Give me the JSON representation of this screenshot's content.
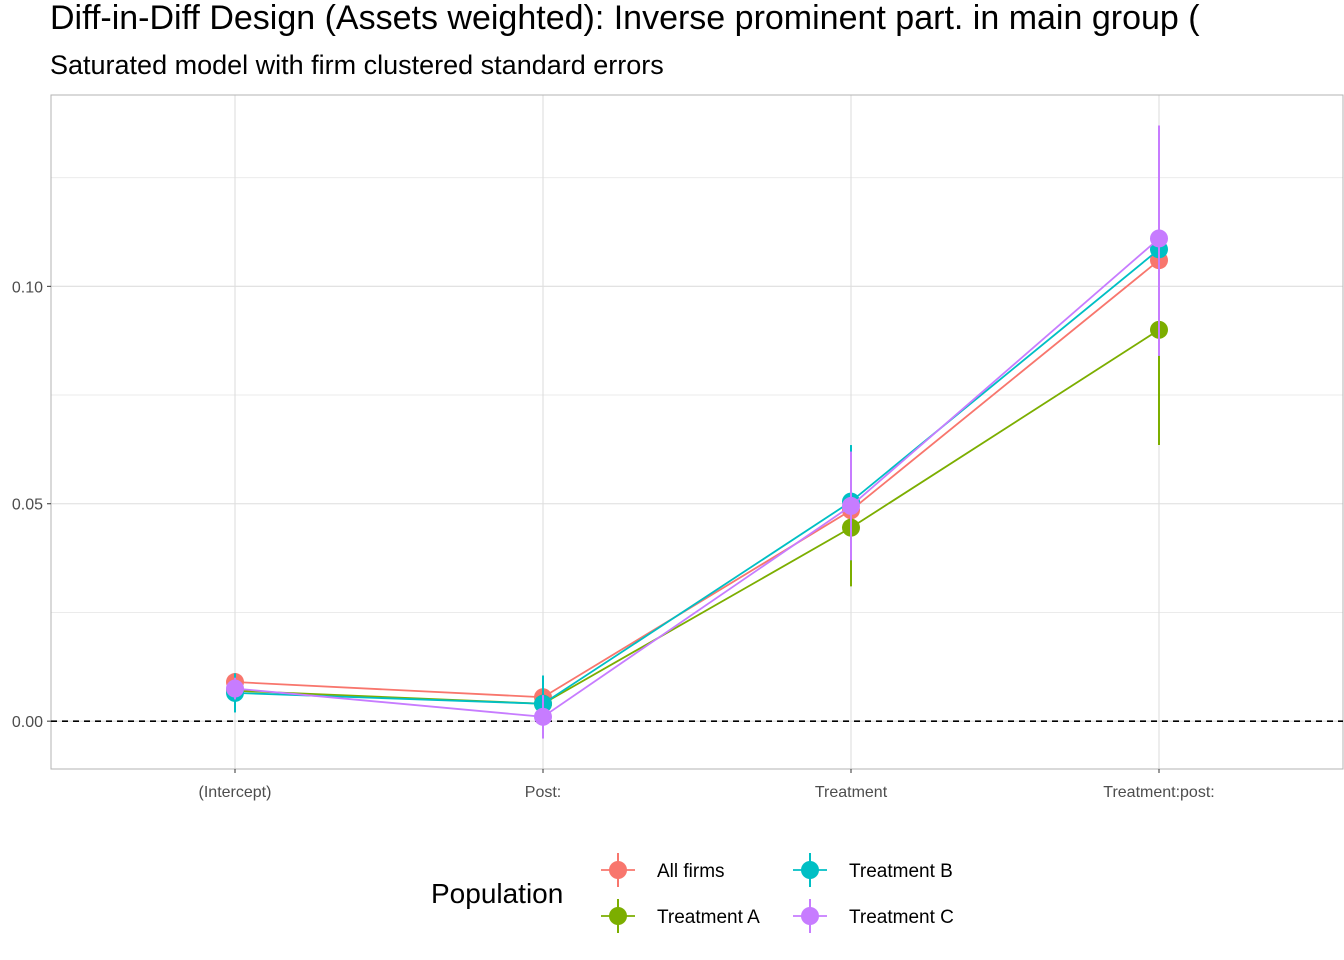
{
  "chart_data": {
    "type": "scatter",
    "title": "Diff-in-Diff Design (Assets weighted): Inverse prominent part. in main group (",
    "subtitle": "Saturated model with firm clustered standard errors",
    "xlabel": "",
    "ylabel": "",
    "categories": [
      "(Intercept)",
      "Post:",
      "Treatment",
      "Treatment:post:"
    ],
    "ylim": [
      -0.011,
      0.144
    ],
    "y_ticks": [
      0.0,
      0.05,
      0.1
    ],
    "y_tick_labels": [
      "0.00",
      "0.05",
      "0.10"
    ],
    "reference_line": {
      "y": 0.0,
      "style": "dashed",
      "color": "#000000"
    },
    "grid": true,
    "legend": {
      "title": "Population",
      "position": "bottom"
    },
    "series": [
      {
        "name": "All firms",
        "color": "#F8766D",
        "values": [
          0.009,
          0.0055,
          0.0485,
          0.106
        ],
        "lower": [
          0.008,
          0.003,
          0.038,
          0.09
        ],
        "upper": [
          0.01,
          0.008,
          0.058,
          0.122
        ]
      },
      {
        "name": "Treatment A",
        "color": "#7CAE00",
        "values": [
          0.007,
          0.004,
          0.0445,
          0.09
        ],
        "lower": [
          0.004,
          -0.001,
          0.031,
          0.0635
        ],
        "upper": [
          0.01,
          0.009,
          0.057,
          0.116
        ]
      },
      {
        "name": "Treatment B",
        "color": "#00BFC4",
        "values": [
          0.0065,
          0.004,
          0.0505,
          0.1085
        ],
        "lower": [
          0.002,
          -0.003,
          0.037,
          0.084
        ],
        "upper": [
          0.011,
          0.0105,
          0.0635,
          0.133
        ]
      },
      {
        "name": "Treatment C",
        "color": "#C77CFF",
        "values": [
          0.0075,
          0.001,
          0.0495,
          0.111
        ],
        "lower": [
          0.005,
          -0.004,
          0.037,
          0.084
        ],
        "upper": [
          0.01,
          0.006,
          0.062,
          0.137
        ]
      }
    ]
  }
}
